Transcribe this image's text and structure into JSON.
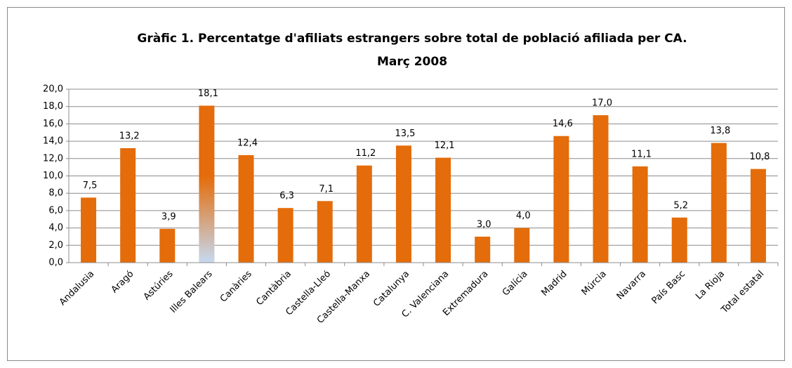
{
  "chart_data": {
    "type": "bar",
    "title": "Gràfic 1. Percentatge d'afiliats estrangers sobre total de població afiliada per CA.",
    "subtitle": "Març 2008",
    "categories": [
      "Andalusia",
      "Aragó",
      "Astúries",
      "Illes Balears",
      "Canàries",
      "Cantàbria",
      "Castella-Lleó",
      "Castella-Manxa",
      "Catalunya",
      "C. Valenciana",
      "Extremadura",
      "Galícia",
      "Madrid",
      "Múrcia",
      "Navarra",
      "País Basc",
      "La Rioja",
      "Total estatal"
    ],
    "values": [
      7.5,
      13.2,
      3.9,
      18.1,
      12.4,
      6.3,
      7.1,
      11.2,
      13.5,
      12.1,
      3.0,
      4.0,
      14.6,
      17.0,
      11.1,
      5.2,
      13.8,
      10.8
    ],
    "value_labels": [
      "7,5",
      "13,2",
      "3,9",
      "18,1",
      "12,4",
      "6,3",
      "7,1",
      "11,2",
      "13,5",
      "12,1",
      "3,0",
      "4,0",
      "14,6",
      "17,0",
      "11,1",
      "5,2",
      "13,8",
      "10,8"
    ],
    "color": "#e46c0a",
    "colors": [
      "#e46c0a",
      "#e46c0a",
      "#e46c0a",
      "#c6d9f1",
      "#e46c0a",
      "#e46c0a",
      "#e46c0a",
      "#e46c0a",
      "#e46c0a",
      "#e46c0a",
      "#e46c0a",
      "#e46c0a",
      "#e46c0a",
      "#e46c0a",
      "#e46c0a",
      "#e46c0a",
      "#e46c0a",
      "#e46c0a"
    ],
    "ylim": [
      0,
      20
    ],
    "yticks": [
      {
        "value": 0,
        "label": "0,0"
      },
      {
        "value": 2,
        "label": "2,0"
      },
      {
        "value": 4,
        "label": "4,0"
      },
      {
        "value": 6,
        "label": "6,0"
      },
      {
        "value": 8,
        "label": "8,0"
      },
      {
        "value": 10,
        "label": "10,0"
      },
      {
        "value": 12,
        "label": "12,0"
      },
      {
        "value": 14,
        "label": "14,0"
      },
      {
        "value": 16,
        "label": "16,0"
      },
      {
        "value": 18,
        "label": "18,0"
      },
      {
        "value": 20,
        "label": "20,0"
      }
    ],
    "grid": true
  }
}
